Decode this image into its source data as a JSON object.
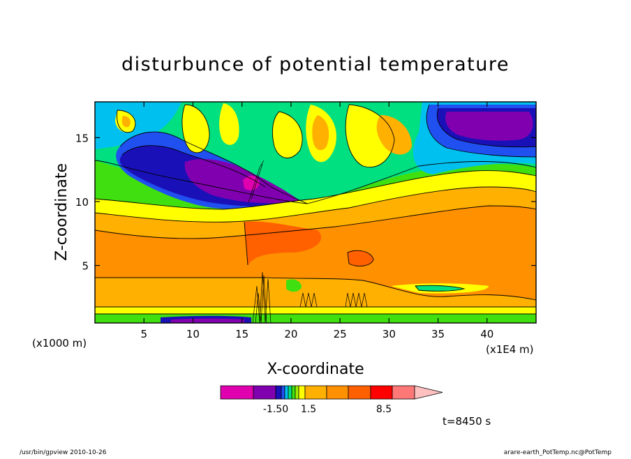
{
  "chart_data": {
    "type": "heatmap",
    "title": "disturbunce of potential temperature",
    "xlabel": "X-coordinate",
    "ylabel": "Z-coordinate",
    "x_unit_left": "(x1000 m)",
    "x_unit_right": "(x1E4 m)",
    "xlim": [
      0,
      45
    ],
    "ylim": [
      0.5,
      17.8
    ],
    "x_ticks": [
      5,
      10,
      15,
      20,
      25,
      30,
      35,
      40
    ],
    "y_ticks": [
      5,
      10,
      15
    ],
    "colorbar": {
      "colors": [
        "#e000b0",
        "#8000b0",
        "#1a10b8",
        "#2050f0",
        "#00c0f0",
        "#00e080",
        "#40e010",
        "#a0f000",
        "#ffff00",
        "#ffb000",
        "#ff9000",
        "#ff6000",
        "#ff0000",
        "#ff7878",
        "#ffc0c0"
      ],
      "labels": [
        "-1.50",
        "1.5",
        "8.5"
      ]
    },
    "annotation": "t=8450 s"
  },
  "footer": {
    "left": "/usr/bin/gpview   2010-10-26",
    "right": "arare-earth_PotTemp.nc@PotTemp"
  }
}
